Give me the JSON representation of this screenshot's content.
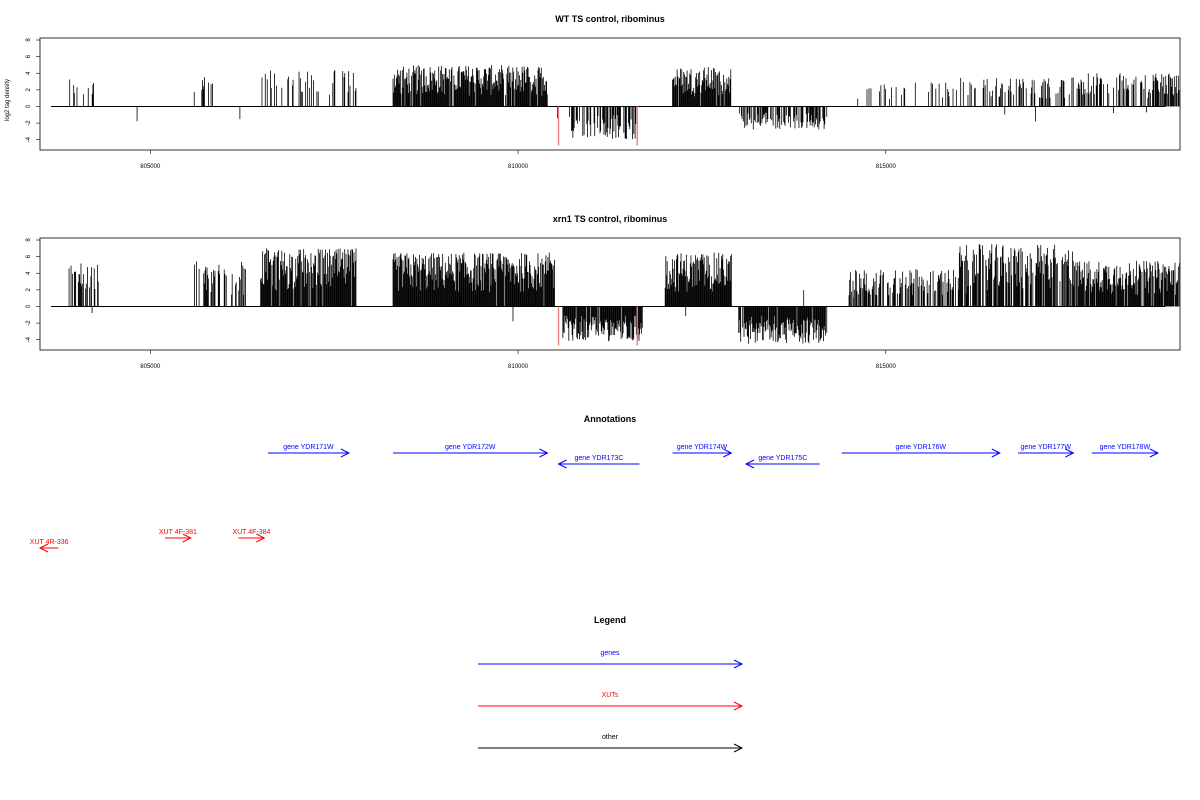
{
  "colors": {
    "gene": "#0000ff",
    "xut": "#ff0000",
    "other": "#000000",
    "bar": "#000000",
    "highlight": "#f08080"
  },
  "chart_data": [
    {
      "type": "bar",
      "title": "WT TS control, ribominus",
      "ylabel": "log2 tag density",
      "xlim": [
        803500,
        819000
      ],
      "ylim": [
        -5,
        8
      ],
      "yticks": [
        "8",
        "6",
        "4",
        "2",
        "0",
        "-2",
        "-4"
      ],
      "xticks": [
        "805000",
        "810000",
        "815000"
      ],
      "grid": false,
      "highlight_positions": [
        810550,
        811620
      ],
      "highlight_value": -4.7,
      "regions": [
        [
          803850,
          804300,
          3.5,
          0.25
        ],
        [
          805700,
          805850,
          4.0,
          0.3
        ],
        [
          806500,
          807800,
          4.5,
          0.3
        ],
        [
          808300,
          810400,
          5.0,
          0.95
        ],
        [
          812100,
          812900,
          4.8,
          0.9
        ],
        [
          814600,
          816000,
          3.0,
          0.2
        ],
        [
          816000,
          817600,
          3.5,
          0.3
        ],
        [
          817600,
          819000,
          4.0,
          0.5
        ]
      ],
      "neg_regions": [
        [
          810700,
          811600,
          -4.0,
          0.6
        ],
        [
          813000,
          814200,
          -2.8,
          0.6
        ]
      ]
    },
    {
      "type": "bar",
      "title": "xrn1 TS control, ribominus",
      "ylabel": "",
      "xlim": [
        803500,
        819000
      ],
      "ylim": [
        -5,
        8
      ],
      "yticks": [
        "8",
        "6",
        "4",
        "2",
        "0",
        "-2",
        "-4"
      ],
      "xticks": [
        "805000",
        "810000",
        "815000"
      ],
      "grid": false,
      "highlight_positions": [
        810550,
        811620
      ],
      "highlight_value": -4.7,
      "regions": [
        [
          803850,
          804300,
          5.5,
          0.4
        ],
        [
          805600,
          806300,
          5.5,
          0.5
        ],
        [
          806500,
          807800,
          7.0,
          0.95
        ],
        [
          808300,
          810500,
          6.5,
          0.98
        ],
        [
          812000,
          812900,
          6.5,
          0.98
        ],
        [
          814500,
          816000,
          4.5,
          0.6
        ],
        [
          816000,
          817600,
          7.5,
          0.8
        ],
        [
          817600,
          819000,
          5.5,
          0.9
        ]
      ],
      "neg_regions": [
        [
          810600,
          811700,
          -4.2,
          0.95
        ],
        [
          813000,
          814200,
          -4.5,
          0.9
        ]
      ]
    }
  ],
  "annotations": {
    "title": "Annotations",
    "genes": [
      {
        "label": "gene YDR171W",
        "start": 806600,
        "end": 807700,
        "strand": "+"
      },
      {
        "label": "gene YDR172W",
        "start": 808300,
        "end": 810400,
        "strand": "+"
      },
      {
        "label": "gene YDR173C",
        "start": 810550,
        "end": 811650,
        "strand": "-"
      },
      {
        "label": "gene YDR174W",
        "start": 812100,
        "end": 812900,
        "strand": "+"
      },
      {
        "label": "gene YDR175C",
        "start": 813100,
        "end": 814100,
        "strand": "-"
      },
      {
        "label": "gene YDR176W",
        "start": 814400,
        "end": 816550,
        "strand": "+"
      },
      {
        "label": "gene YDR177W",
        "start": 816800,
        "end": 817550,
        "strand": "+"
      },
      {
        "label": "gene YDR178W",
        "start": 817800,
        "end": 818700,
        "strand": "+"
      }
    ],
    "xuts": [
      {
        "label": "XUT 4R-336",
        "start": 803100,
        "end": 803750,
        "strand": "-"
      },
      {
        "label": "XUT 4F-381",
        "start": 805200,
        "end": 805550,
        "strand": "+"
      },
      {
        "label": "XUT 4F-384",
        "start": 806200,
        "end": 806550,
        "strand": "+"
      }
    ]
  },
  "legend": {
    "title": "Legend",
    "items": [
      {
        "label": "genes",
        "color": "#0000ff"
      },
      {
        "label": "XUTs",
        "color": "#ff0000"
      },
      {
        "label": "other",
        "color": "#000000"
      }
    ]
  }
}
